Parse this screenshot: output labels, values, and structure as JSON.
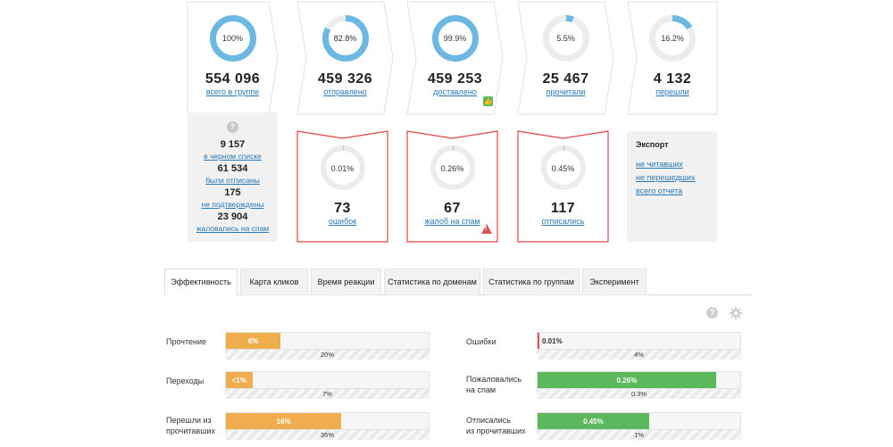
{
  "funnel": [
    {
      "pct": "100%",
      "fraction": 1.0,
      "value": "554 096",
      "label": "всего в группе"
    },
    {
      "pct": "82.8%",
      "fraction": 0.828,
      "value": "459 326",
      "label": "отправлено"
    },
    {
      "pct": "99.9%",
      "fraction": 0.999,
      "value": "459 253",
      "label": "доставлено"
    },
    {
      "pct": "5.5%",
      "fraction": 0.055,
      "value": "25 467",
      "label": "прочитали"
    },
    {
      "pct": "16.2%",
      "fraction": 0.162,
      "value": "4 132",
      "label": "перешли"
    }
  ],
  "side_stats": [
    {
      "value": "9 157",
      "label": "в черном списке"
    },
    {
      "value": "61 534",
      "label": "были отписаны"
    },
    {
      "value": "175",
      "label": "не подтверждены"
    },
    {
      "value": "23 904",
      "label": "жаловались на спам"
    }
  ],
  "problems": [
    {
      "pct": "0.01%",
      "fraction": 0.0001,
      "value": "73",
      "label": "ошибок"
    },
    {
      "pct": "0.26%",
      "fraction": 0.0026,
      "value": "67",
      "label": "жалоб на спам"
    },
    {
      "pct": "0.45%",
      "fraction": 0.0045,
      "value": "117",
      "label": "отписались"
    }
  ],
  "export": {
    "title": "Экспорт",
    "links": [
      "не читавших",
      "не перешедших",
      "всего отчета"
    ]
  },
  "tabs": [
    "Эффективность",
    "Карта кликов",
    "Время реакции",
    "Статистика по доменам",
    "Статистика по группам",
    "Эксперимент"
  ],
  "metrics_left": [
    {
      "label": "Прочтение",
      "value": "6%",
      "fraction": 0.27,
      "avg": "20%",
      "color": "#f0ad4e"
    },
    {
      "label": "Переходы",
      "value": "<1%",
      "fraction": 0.13,
      "avg": "7%",
      "color": "#f0ad4e"
    },
    {
      "label": "Перешли из\nпрочитавших",
      "value": "16%",
      "fraction": 0.57,
      "avg": "35%",
      "color": "#f0ad4e"
    }
  ],
  "metrics_right": [
    {
      "label": "Ошибки",
      "value": "0.01%",
      "fraction": 0.01,
      "avg": "4%",
      "color": "#d9534f"
    },
    {
      "label": "Пожаловались\nна спам",
      "value": "0.26%",
      "fraction": 0.88,
      "avg": "0.3%",
      "color": "#5cb85c"
    },
    {
      "label": "Отписались\nиз прочитавших",
      "value": "0.45%",
      "fraction": 0.55,
      "avg": "1%",
      "color": "#5cb85c"
    }
  ],
  "colors": {
    "ring": "#6cb8e2",
    "ring_bg": "#ececec",
    "problem_border": "#e04545",
    "card_border": "#e2e2e2"
  }
}
